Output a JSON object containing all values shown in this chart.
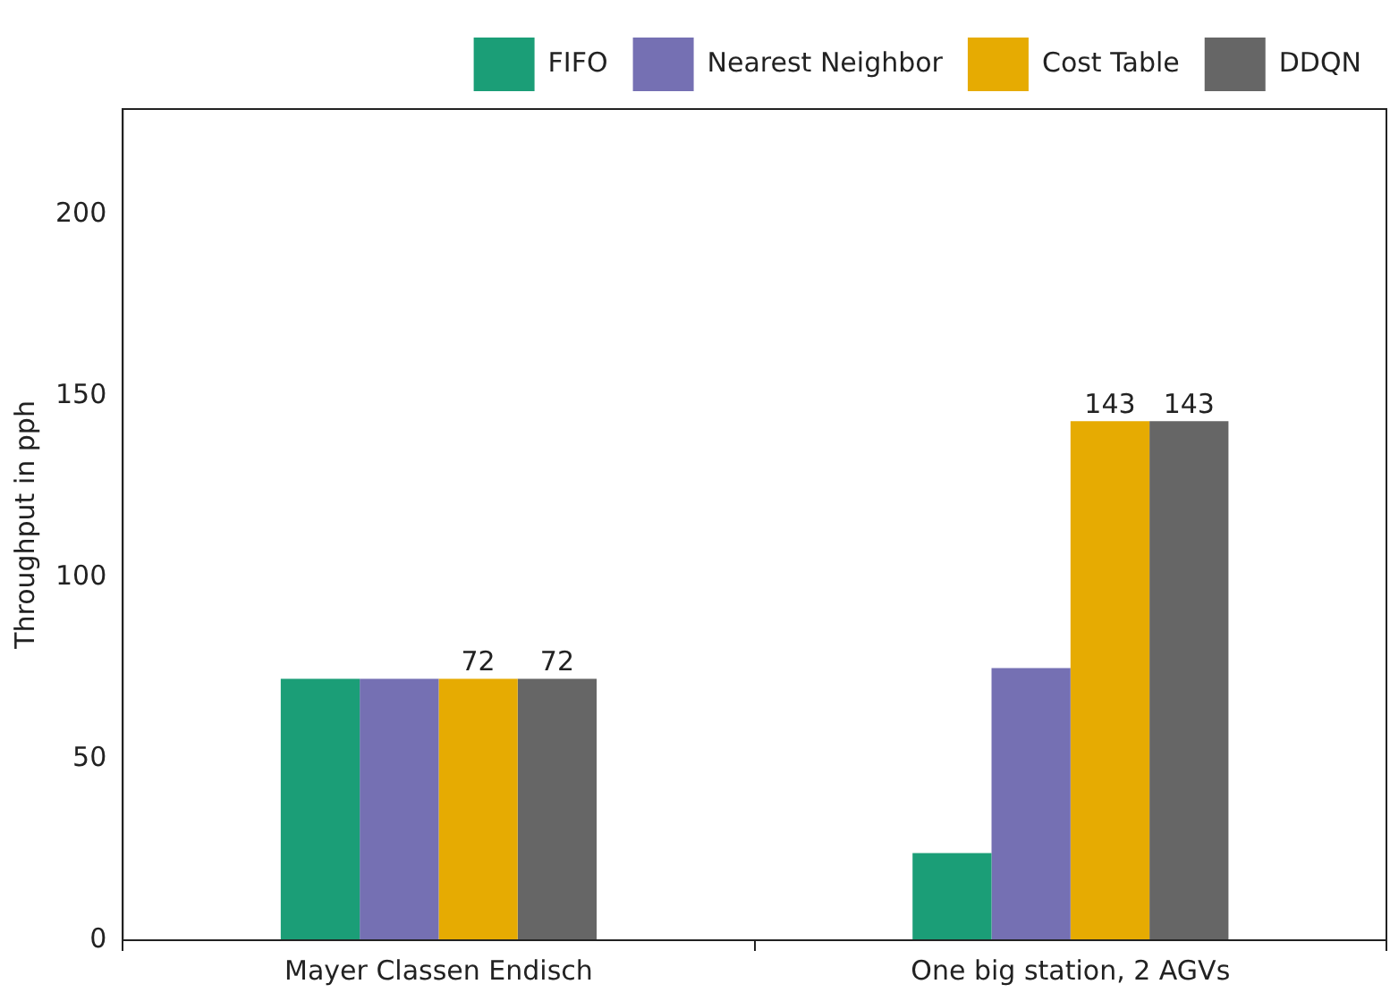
{
  "chart_data": {
    "type": "bar",
    "ylabel": "Throughput in pph",
    "categories": [
      "Mayer Classen Endisch",
      "One big station, 2 AGVs"
    ],
    "series": [
      {
        "name": "FIFO",
        "color": "#1b9e77",
        "values": [
          72,
          24
        ]
      },
      {
        "name": "Nearest Neighbor",
        "color": "#7570b3",
        "values": [
          72,
          75
        ]
      },
      {
        "name": "Cost Table",
        "color": "#e6ab02",
        "values": [
          72,
          143
        ],
        "value_labels": [
          "72",
          "143"
        ]
      },
      {
        "name": "DDQN",
        "color": "#666666",
        "values": [
          72,
          143
        ],
        "value_labels": [
          "72",
          "143"
        ]
      }
    ],
    "ylim": [
      0,
      229
    ],
    "yticks": [
      0,
      50,
      100,
      150,
      200
    ],
    "grid": false,
    "legend": "top right"
  }
}
